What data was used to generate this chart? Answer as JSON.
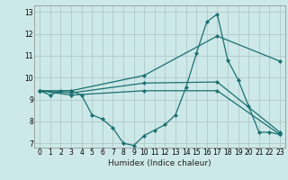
{
  "xlabel": "Humidex (Indice chaleur)",
  "xlim": [
    -0.5,
    23.5
  ],
  "ylim": [
    6.8,
    13.3
  ],
  "yticks": [
    7,
    8,
    9,
    10,
    11,
    12,
    13
  ],
  "xticks": [
    0,
    1,
    2,
    3,
    4,
    5,
    6,
    7,
    8,
    9,
    10,
    11,
    12,
    13,
    14,
    15,
    16,
    17,
    18,
    19,
    20,
    21,
    22,
    23
  ],
  "bg_color": "#cde8e8",
  "line_color": "#1a7070",
  "grid_color": "#b0c8c8",
  "lines": [
    {
      "x": [
        0,
        1,
        2,
        3,
        4,
        5,
        6,
        7,
        8,
        9,
        10,
        11,
        12,
        13,
        14,
        15,
        16,
        17,
        18,
        19,
        20,
        21,
        22,
        23
      ],
      "y": [
        9.4,
        9.2,
        9.4,
        9.4,
        9.2,
        8.3,
        8.1,
        7.7,
        7.0,
        6.9,
        7.35,
        7.6,
        7.85,
        8.3,
        9.55,
        11.1,
        12.55,
        12.9,
        10.8,
        9.9,
        8.7,
        7.5,
        7.5,
        7.4
      ]
    },
    {
      "x": [
        0,
        3,
        10,
        17,
        23
      ],
      "y": [
        9.4,
        9.4,
        10.1,
        11.9,
        10.75
      ]
    },
    {
      "x": [
        0,
        3,
        10,
        17,
        23
      ],
      "y": [
        9.4,
        9.3,
        9.75,
        9.8,
        7.5
      ]
    },
    {
      "x": [
        0,
        3,
        10,
        17,
        23
      ],
      "y": [
        9.4,
        9.2,
        9.4,
        9.4,
        7.4
      ]
    }
  ]
}
